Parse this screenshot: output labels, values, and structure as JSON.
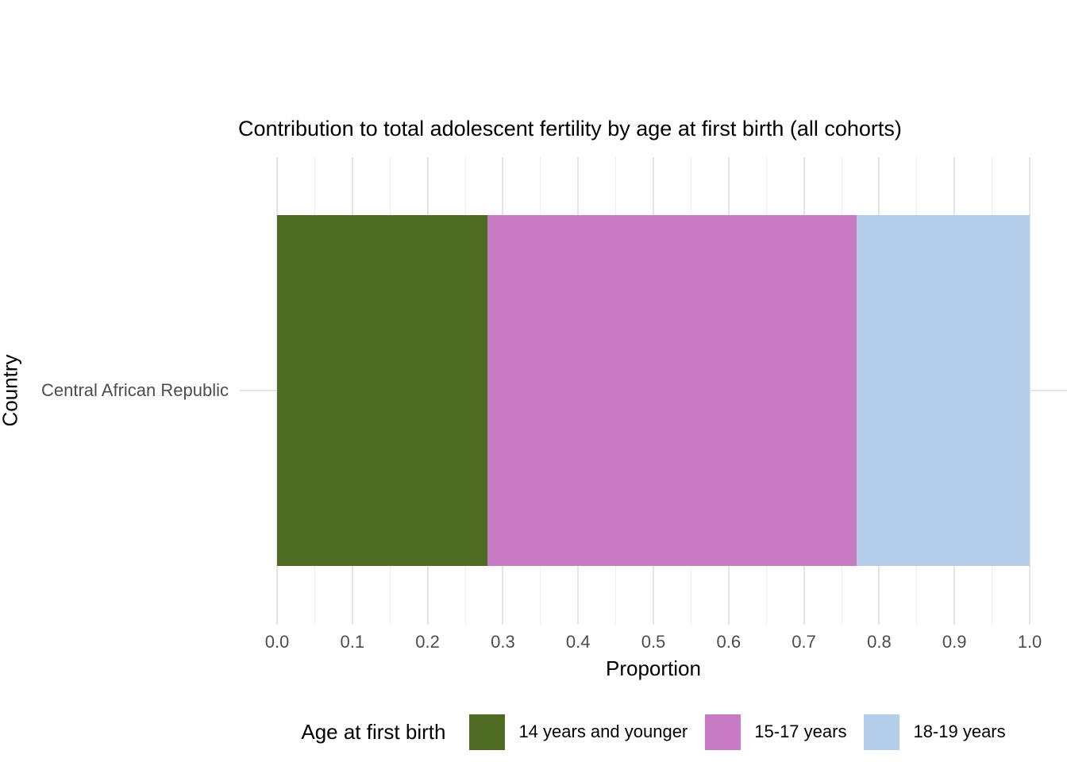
{
  "title": "Contribution to total adolescent fertility by age at first birth (all cohorts)",
  "chart_data": {
    "type": "bar",
    "orientation": "horizontal",
    "stacked": true,
    "title": "Contribution to total adolescent fertility by age at first birth (all cohorts)",
    "categories": [
      "Central African Republic"
    ],
    "series": [
      {
        "name": "14 years and younger",
        "color": "#4D6B22",
        "values": [
          0.28
        ]
      },
      {
        "name": "15-17 years",
        "color": "#C77BC1",
        "values": [
          0.49
        ]
      },
      {
        "name": "18-19 years",
        "color": "#B4CEEC",
        "values": [
          0.23
        ]
      }
    ],
    "xlabel": "Proportion",
    "ylabel": "Country",
    "xlim": [
      0,
      1
    ],
    "x_ticks": [
      "0.0",
      "0.1",
      "0.2",
      "0.3",
      "0.4",
      "0.5",
      "0.6",
      "0.7",
      "0.8",
      "0.9",
      "1.0"
    ],
    "minor_tick_step": 0.05,
    "grid": "vertical major and minor gridlines, light gray, on white panel",
    "legend_title": "Age at first birth",
    "legend_position": "bottom",
    "style": {
      "major_grid_color": "#E5E5E5",
      "minor_grid_color": "#EFEFEF",
      "tick_label_color": "#4D4D4D",
      "text_color": "#000000",
      "background": "#FFFFFF"
    }
  }
}
